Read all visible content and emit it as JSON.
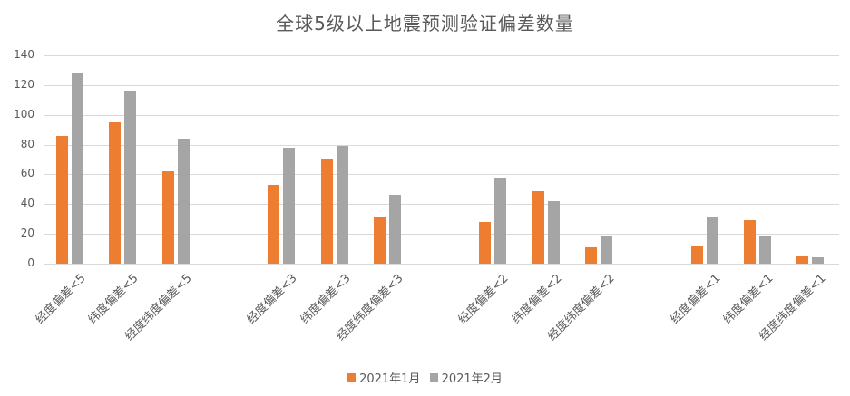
{
  "chart_data": {
    "type": "bar",
    "title": "全球5级以上地震预测验证偏差数量",
    "xlabel": "",
    "ylabel": "",
    "ylim": [
      0,
      140
    ],
    "yticks": [
      0,
      20,
      40,
      60,
      80,
      100,
      120,
      140
    ],
    "grid": true,
    "legend_position": "bottom",
    "categories": [
      "经度偏差<5",
      "纬度偏差<5",
      "经度纬度偏差<5",
      "经度偏差<3",
      "纬度偏差<3",
      "经度纬度偏差<3",
      "经度偏差<2",
      "纬度偏差<2",
      "经度纬度偏差<2",
      "经度偏差<1",
      "纬度偏差<1",
      "经度纬度偏差<1"
    ],
    "series": [
      {
        "name": "2021年1月",
        "color": "#ED7D31",
        "values": [
          86,
          95,
          62,
          53,
          70,
          31,
          28,
          49,
          11,
          12,
          29,
          5
        ]
      },
      {
        "name": "2021年2月",
        "color": "#A5A5A5",
        "values": [
          128,
          116,
          84,
          78,
          79,
          46,
          58,
          42,
          19,
          31,
          19,
          4
        ]
      }
    ]
  },
  "legend": {
    "items": [
      {
        "label": "2021年1月",
        "color": "#ED7D31"
      },
      {
        "label": "2021年2月",
        "color": "#A5A5A5"
      }
    ]
  }
}
